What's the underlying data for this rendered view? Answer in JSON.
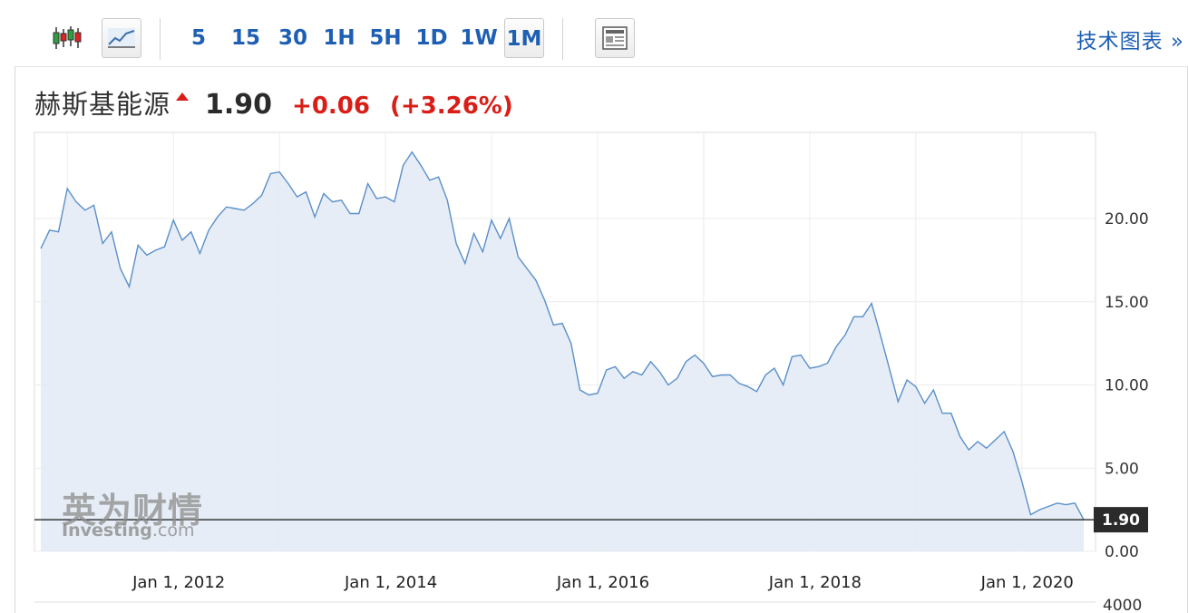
{
  "toolbar": {
    "chart_type_buttons": [
      {
        "name": "candlestick",
        "icon": "candlestick-icon"
      },
      {
        "name": "line",
        "icon": "line-chart-icon"
      }
    ],
    "intervals": [
      "5",
      "15",
      "30",
      "1H",
      "5H",
      "1D",
      "1W",
      "1M"
    ],
    "active_interval": "1M",
    "tech_chart_label": "技术图表 »"
  },
  "quote": {
    "name": "赫斯基能源",
    "price": "1.90",
    "change": "+0.06",
    "change_pct": "(+3.26%)",
    "direction": "up",
    "up_color": "#d91e18"
  },
  "watermark": {
    "cn": "英为财情",
    "en_main": "Investing",
    "en_suffix": ".com"
  },
  "chart_data": {
    "type": "area",
    "x_tick_labels": [
      "Jan 1, 2012",
      "Jan 1, 2014",
      "Jan 1, 2016",
      "Jan 1, 2018",
      "Jan 1, 2020"
    ],
    "x_tick_years": [
      2012,
      2014,
      2016,
      2018,
      2020
    ],
    "y_tick_labels": [
      "20.00",
      "15.00",
      "10.00",
      "5.00",
      "0.00"
    ],
    "y_ticks": [
      20,
      15,
      10,
      5,
      0
    ],
    "volume_tick_label": "4000",
    "ylim": [
      0,
      25
    ],
    "xlim": [
      "2010-10",
      "2020-06"
    ],
    "last_price_label": "1.90",
    "last_price": 1.9,
    "line_color": "#5a8fc8",
    "fill_color": "#e3ebf5",
    "points": [
      {
        "date": "2010-10",
        "value": 18.2
      },
      {
        "date": "2010-11",
        "value": 19.3
      },
      {
        "date": "2010-12",
        "value": 19.2
      },
      {
        "date": "2011-01",
        "value": 21.8
      },
      {
        "date": "2011-02",
        "value": 21.0
      },
      {
        "date": "2011-03",
        "value": 20.5
      },
      {
        "date": "2011-04",
        "value": 20.8
      },
      {
        "date": "2011-05",
        "value": 18.5
      },
      {
        "date": "2011-06",
        "value": 19.2
      },
      {
        "date": "2011-07",
        "value": 17.0
      },
      {
        "date": "2011-08",
        "value": 15.9
      },
      {
        "date": "2011-09",
        "value": 18.4
      },
      {
        "date": "2011-10",
        "value": 17.8
      },
      {
        "date": "2011-11",
        "value": 18.1
      },
      {
        "date": "2011-12",
        "value": 18.3
      },
      {
        "date": "2012-01",
        "value": 19.9
      },
      {
        "date": "2012-02",
        "value": 18.7
      },
      {
        "date": "2012-03",
        "value": 19.2
      },
      {
        "date": "2012-04",
        "value": 17.9
      },
      {
        "date": "2012-05",
        "value": 19.3
      },
      {
        "date": "2012-06",
        "value": 20.1
      },
      {
        "date": "2012-07",
        "value": 20.7
      },
      {
        "date": "2012-08",
        "value": 20.6
      },
      {
        "date": "2012-09",
        "value": 20.5
      },
      {
        "date": "2012-10",
        "value": 20.9
      },
      {
        "date": "2012-11",
        "value": 21.4
      },
      {
        "date": "2012-12",
        "value": 22.7
      },
      {
        "date": "2013-01",
        "value": 22.8
      },
      {
        "date": "2013-02",
        "value": 22.1
      },
      {
        "date": "2013-03",
        "value": 21.3
      },
      {
        "date": "2013-04",
        "value": 21.6
      },
      {
        "date": "2013-05",
        "value": 20.1
      },
      {
        "date": "2013-06",
        "value": 21.5
      },
      {
        "date": "2013-07",
        "value": 21.0
      },
      {
        "date": "2013-08",
        "value": 21.1
      },
      {
        "date": "2013-09",
        "value": 20.3
      },
      {
        "date": "2013-10",
        "value": 20.3
      },
      {
        "date": "2013-11",
        "value": 22.1
      },
      {
        "date": "2013-12",
        "value": 21.2
      },
      {
        "date": "2014-01",
        "value": 21.3
      },
      {
        "date": "2014-02",
        "value": 21.0
      },
      {
        "date": "2014-03",
        "value": 23.2
      },
      {
        "date": "2014-04",
        "value": 24.0
      },
      {
        "date": "2014-05",
        "value": 23.2
      },
      {
        "date": "2014-06",
        "value": 22.3
      },
      {
        "date": "2014-07",
        "value": 22.5
      },
      {
        "date": "2014-08",
        "value": 21.1
      },
      {
        "date": "2014-09",
        "value": 18.5
      },
      {
        "date": "2014-10",
        "value": 17.3
      },
      {
        "date": "2014-11",
        "value": 19.1
      },
      {
        "date": "2014-12",
        "value": 18.0
      },
      {
        "date": "2015-01",
        "value": 19.9
      },
      {
        "date": "2015-02",
        "value": 18.8
      },
      {
        "date": "2015-03",
        "value": 20.0
      },
      {
        "date": "2015-04",
        "value": 17.7
      },
      {
        "date": "2015-05",
        "value": 17.0
      },
      {
        "date": "2015-06",
        "value": 16.3
      },
      {
        "date": "2015-07",
        "value": 15.1
      },
      {
        "date": "2015-08",
        "value": 13.6
      },
      {
        "date": "2015-09",
        "value": 13.7
      },
      {
        "date": "2015-10",
        "value": 12.5
      },
      {
        "date": "2015-11",
        "value": 9.7
      },
      {
        "date": "2015-12",
        "value": 9.4
      },
      {
        "date": "2016-01",
        "value": 9.5
      },
      {
        "date": "2016-02",
        "value": 10.9
      },
      {
        "date": "2016-03",
        "value": 11.1
      },
      {
        "date": "2016-04",
        "value": 10.4
      },
      {
        "date": "2016-05",
        "value": 10.8
      },
      {
        "date": "2016-06",
        "value": 10.6
      },
      {
        "date": "2016-07",
        "value": 11.4
      },
      {
        "date": "2016-08",
        "value": 10.8
      },
      {
        "date": "2016-09",
        "value": 10.0
      },
      {
        "date": "2016-10",
        "value": 10.4
      },
      {
        "date": "2016-11",
        "value": 11.4
      },
      {
        "date": "2016-12",
        "value": 11.8
      },
      {
        "date": "2017-01",
        "value": 11.3
      },
      {
        "date": "2017-02",
        "value": 10.5
      },
      {
        "date": "2017-03",
        "value": 10.6
      },
      {
        "date": "2017-04",
        "value": 10.6
      },
      {
        "date": "2017-05",
        "value": 10.1
      },
      {
        "date": "2017-06",
        "value": 9.9
      },
      {
        "date": "2017-07",
        "value": 9.6
      },
      {
        "date": "2017-08",
        "value": 10.6
      },
      {
        "date": "2017-09",
        "value": 11.0
      },
      {
        "date": "2017-10",
        "value": 10.0
      },
      {
        "date": "2017-11",
        "value": 11.7
      },
      {
        "date": "2017-12",
        "value": 11.8
      },
      {
        "date": "2018-01",
        "value": 11.0
      },
      {
        "date": "2018-02",
        "value": 11.1
      },
      {
        "date": "2018-03",
        "value": 11.3
      },
      {
        "date": "2018-04",
        "value": 12.3
      },
      {
        "date": "2018-05",
        "value": 13.0
      },
      {
        "date": "2018-06",
        "value": 14.1
      },
      {
        "date": "2018-07",
        "value": 14.1
      },
      {
        "date": "2018-08",
        "value": 14.9
      },
      {
        "date": "2018-09",
        "value": 13.0
      },
      {
        "date": "2018-10",
        "value": 11.0
      },
      {
        "date": "2018-11",
        "value": 9.0
      },
      {
        "date": "2018-12",
        "value": 10.3
      },
      {
        "date": "2019-01",
        "value": 9.9
      },
      {
        "date": "2019-02",
        "value": 8.9
      },
      {
        "date": "2019-03",
        "value": 9.7
      },
      {
        "date": "2019-04",
        "value": 8.3
      },
      {
        "date": "2019-05",
        "value": 8.3
      },
      {
        "date": "2019-06",
        "value": 6.9
      },
      {
        "date": "2019-07",
        "value": 6.1
      },
      {
        "date": "2019-08",
        "value": 6.6
      },
      {
        "date": "2019-09",
        "value": 6.2
      },
      {
        "date": "2019-10",
        "value": 6.7
      },
      {
        "date": "2019-11",
        "value": 7.2
      },
      {
        "date": "2019-12",
        "value": 6.0
      },
      {
        "date": "2020-01",
        "value": 4.2
      },
      {
        "date": "2020-02",
        "value": 2.2
      },
      {
        "date": "2020-03",
        "value": 2.5
      },
      {
        "date": "2020-04",
        "value": 2.7
      },
      {
        "date": "2020-05",
        "value": 2.9
      },
      {
        "date": "2020-06",
        "value": 2.8
      },
      {
        "date": "2020-07",
        "value": 2.9
      },
      {
        "date": "2020-08",
        "value": 1.9
      }
    ]
  }
}
